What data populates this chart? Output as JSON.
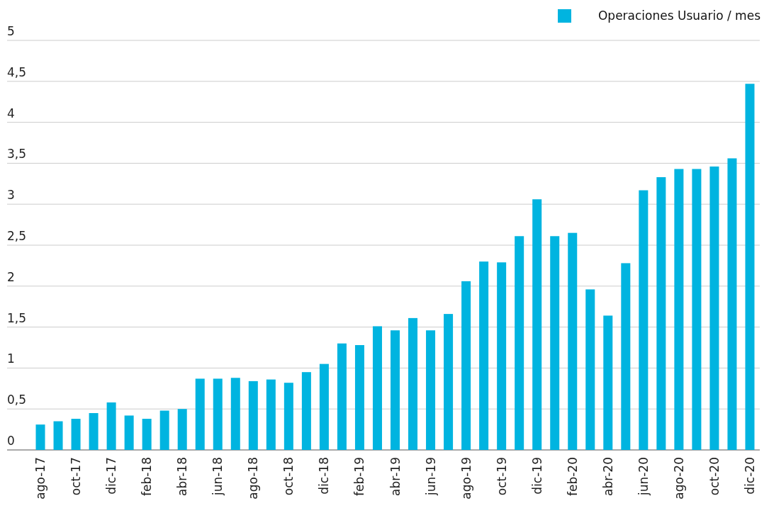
{
  "chart_data": {
    "type": "bar",
    "categories": [
      "ago-17",
      null,
      "oct-17",
      null,
      "dic-17",
      null,
      "feb-18",
      null,
      "abr-18",
      null,
      "jun-18",
      null,
      "ago-18",
      null,
      "oct-18",
      null,
      "dic-18",
      null,
      "feb-19",
      null,
      "abr-19",
      null,
      "jun-19",
      null,
      "ago-19",
      null,
      "oct-19",
      null,
      "dic-19",
      null,
      "feb-20",
      null,
      "abr-20",
      null,
      "jun-20",
      null,
      "ago-20",
      null,
      "oct-20",
      null,
      "dic-20"
    ],
    "series": [
      {
        "name": "Operaciones Usuario / mes",
        "color": "#00b4e0",
        "values": [
          0.31,
          0.35,
          0.38,
          0.45,
          0.58,
          0.42,
          0.38,
          0.48,
          0.5,
          0.87,
          0.87,
          0.88,
          0.84,
          0.86,
          0.82,
          0.95,
          1.05,
          1.3,
          1.28,
          1.51,
          1.46,
          1.61,
          1.46,
          1.66,
          2.06,
          2.3,
          2.29,
          2.61,
          3.06,
          2.61,
          2.65,
          1.96,
          1.64,
          2.28,
          3.17,
          3.33,
          3.43,
          3.43,
          3.46,
          3.56,
          4.47
        ]
      }
    ],
    "ylim": [
      0,
      5
    ],
    "yticks": [
      0,
      {
        "value": 0.5,
        "label": "0,5"
      },
      1,
      {
        "value": 1.5,
        "label": "1,5"
      },
      2,
      {
        "value": 2.5,
        "label": "2,5"
      },
      3,
      {
        "value": 3.5,
        "label": "3,5"
      },
      4,
      {
        "value": 4.5,
        "label": "4,5"
      },
      5
    ],
    "grid": "y",
    "legend": "top right"
  }
}
